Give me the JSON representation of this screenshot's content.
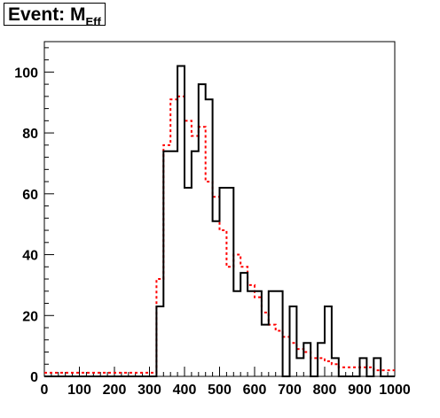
{
  "chart_data": {
    "type": "histogram",
    "title_main": "Event: M",
    "title_sub": "Eff",
    "xlabel": "",
    "ylabel": "",
    "xlim": [
      0,
      1000
    ],
    "ylim": [
      0,
      110
    ],
    "x_ticks": [
      0,
      100,
      200,
      300,
      400,
      500,
      600,
      700,
      800,
      900,
      1000
    ],
    "y_ticks": [
      0,
      20,
      40,
      60,
      80,
      100
    ],
    "bin_width": 20,
    "bin_edges_start": 320,
    "colors": {
      "solid": "#000000",
      "dashed": "#ff0000"
    },
    "series": [
      {
        "style": "solid",
        "values": [
          23,
          74,
          74,
          102,
          62,
          74,
          96,
          91,
          51,
          62,
          62,
          28,
          34,
          28,
          28,
          17,
          28,
          28,
          0,
          23,
          6,
          11,
          0,
          11,
          23,
          6,
          0,
          0,
          0,
          6,
          0,
          6,
          0,
          0,
          0
        ]
      },
      {
        "style": "dashed",
        "baseline_before_start": 1.2,
        "values": [
          32,
          76,
          91,
          92,
          84,
          79,
          82,
          64,
          59,
          48,
          36,
          40,
          36,
          30,
          26,
          21,
          17,
          15,
          13,
          11,
          9,
          8,
          6,
          6,
          5,
          4,
          3,
          3,
          3,
          3,
          3,
          2,
          2,
          2,
          2
        ]
      }
    ]
  }
}
